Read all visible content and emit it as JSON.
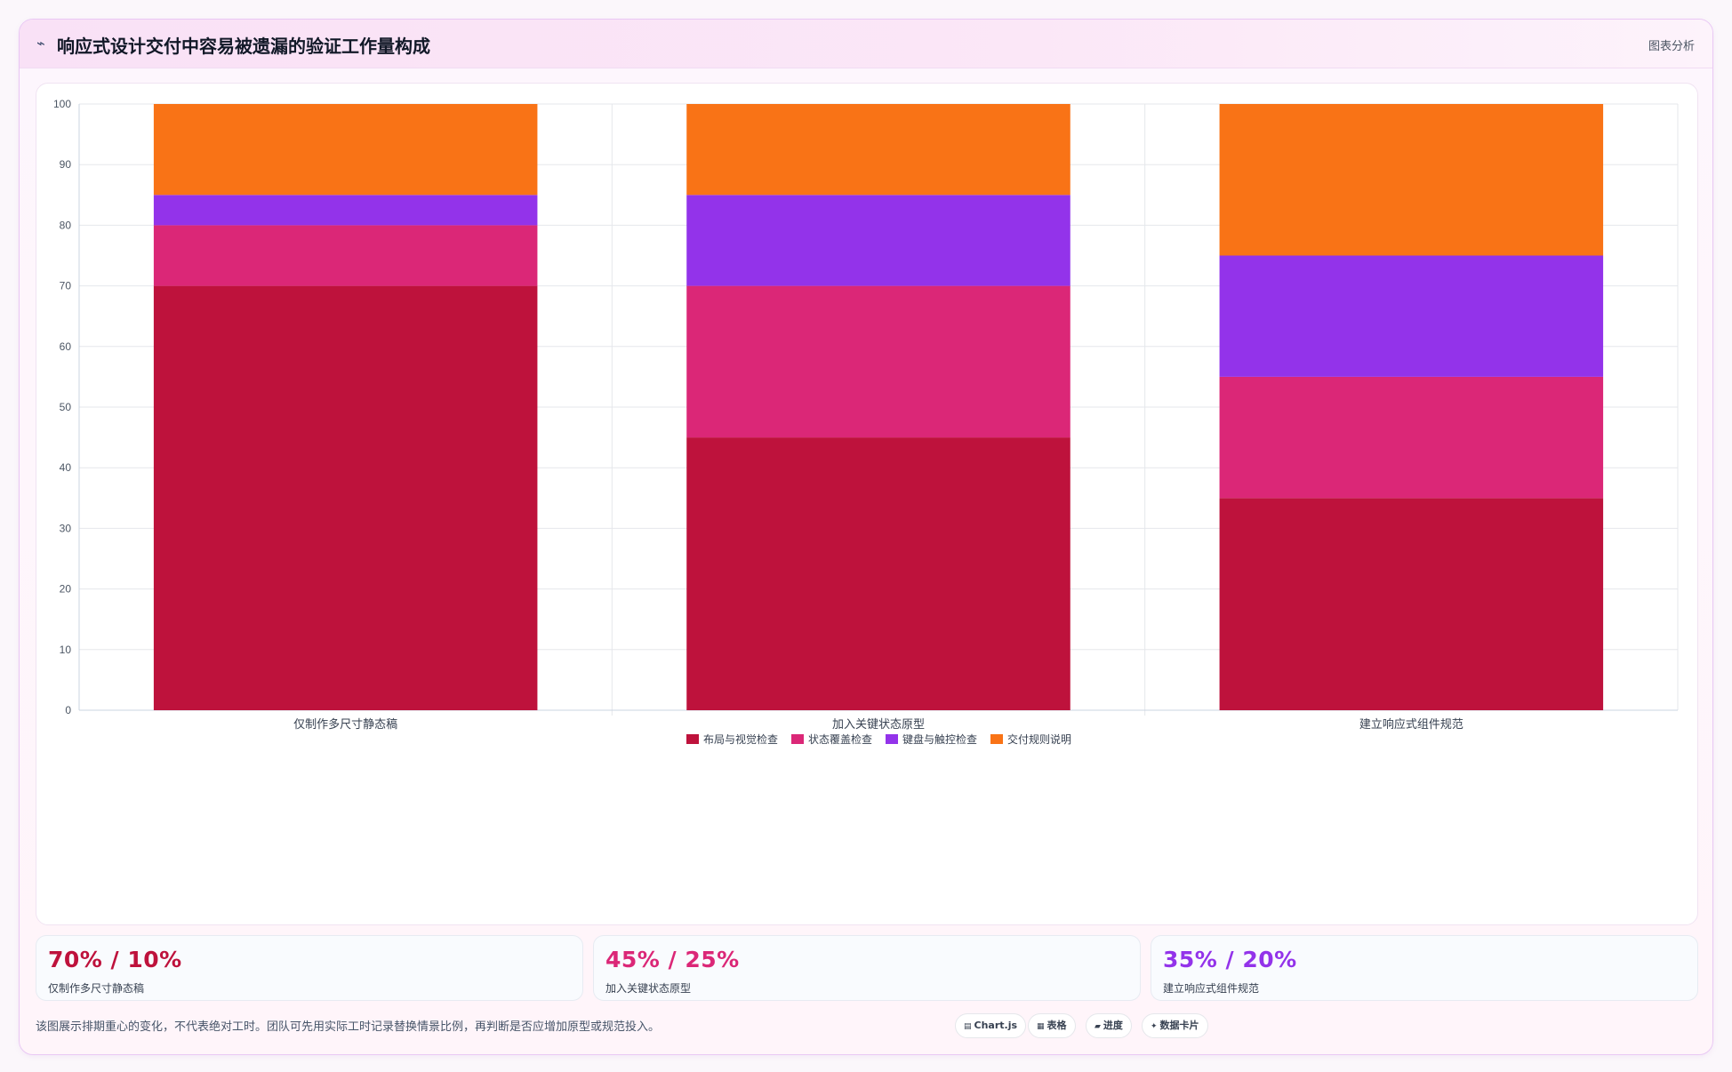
{
  "header": {
    "icon": "chart-line-icon",
    "title": "响应式设计交付中容易被遗漏的验证工作量构成",
    "tag": "图表分析"
  },
  "chart_data": {
    "type": "bar",
    "stacked": true,
    "categories": [
      "仅制作多尺寸静态稿",
      "加入关键状态原型",
      "建立响应式组件规范"
    ],
    "series": [
      {
        "name": "布局与视觉检查",
        "values": [
          70,
          45,
          35
        ],
        "color": "#be123c"
      },
      {
        "name": "状态覆盖检查",
        "values": [
          10,
          25,
          20
        ],
        "color": "#db2777"
      },
      {
        "name": "键盘与触控检查",
        "values": [
          5,
          15,
          20
        ],
        "color": "#9333ea"
      },
      {
        "name": "交付规则说明",
        "values": [
          15,
          15,
          25
        ],
        "color": "#f97316"
      }
    ],
    "ylim": [
      0,
      100
    ],
    "yticks": [
      0,
      10,
      20,
      30,
      40,
      50,
      60,
      70,
      80,
      90,
      100
    ],
    "grid": true,
    "legend": "bottom"
  },
  "stats": [
    {
      "value": "70% / 10%",
      "label": "仅制作多尺寸静态稿",
      "color": "#be123c"
    },
    {
      "value": "45% / 25%",
      "label": "加入关键状态原型",
      "color": "#db2777"
    },
    {
      "value": "35% / 20%",
      "label": "建立响应式组件规范",
      "color": "#9333ea"
    }
  ],
  "footer": {
    "note": "该图展示排期重心的变化，不代表绝对工时。团队可先用实际工时记录替换情景比例，再判断是否应增加原型或规范投入。",
    "chips": [
      {
        "icon": "chart-icon",
        "glyph": "▤",
        "label": "Chart.js"
      },
      {
        "icon": "table-icon",
        "glyph": "▦",
        "label": "表格"
      },
      {
        "icon": "progress-icon",
        "glyph": "▰",
        "label": "进度"
      },
      {
        "icon": "sparkle-icon",
        "glyph": "✦",
        "label": "数据卡片"
      }
    ]
  }
}
